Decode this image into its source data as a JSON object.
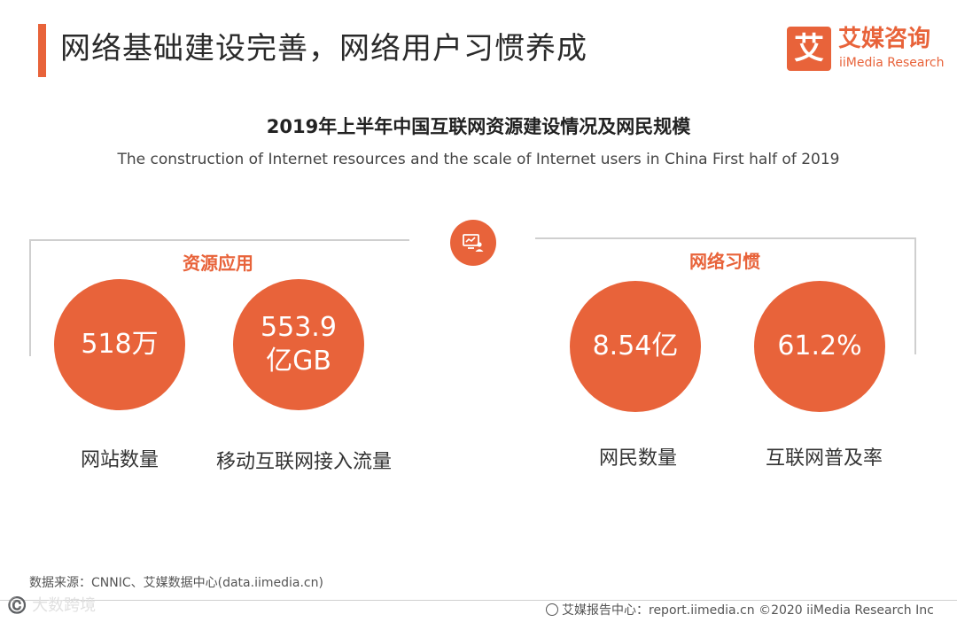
{
  "header": {
    "title": "网络基础建设完善，网络用户习惯养成",
    "logo_mark": "艾",
    "logo_cn": "艾媒咨询",
    "logo_en": "iiMedia Research"
  },
  "chart": {
    "title": "2019年上半年中国互联网资源建设情况及网民规模",
    "subtitle": "The construction of Internet resources and the scale of Internet users in China First half of 2019"
  },
  "sections": {
    "left": "资源应用",
    "right": "网络习惯"
  },
  "metrics": [
    {
      "value": "518万",
      "label": "网站数量"
    },
    {
      "value_line1": "553.9",
      "value_line2": "亿GB",
      "label": "移动互联网接入流量"
    },
    {
      "value": "8.54亿",
      "label": "网民数量"
    },
    {
      "value": "61.2%",
      "label": "互联网普及率"
    }
  ],
  "footer": {
    "source": "数据来源：CNNIC、艾媒数据中心(data.iimedia.cn)",
    "watermark": "©️ 大数跨境",
    "report_center": "艾媒报告中心：report.iimedia.cn  ©2020  iiMedia Research  Inc"
  },
  "colors": {
    "accent": "#e8633a"
  },
  "icons": {
    "center": "monitor-user-icon",
    "footer": "globe-icon"
  }
}
